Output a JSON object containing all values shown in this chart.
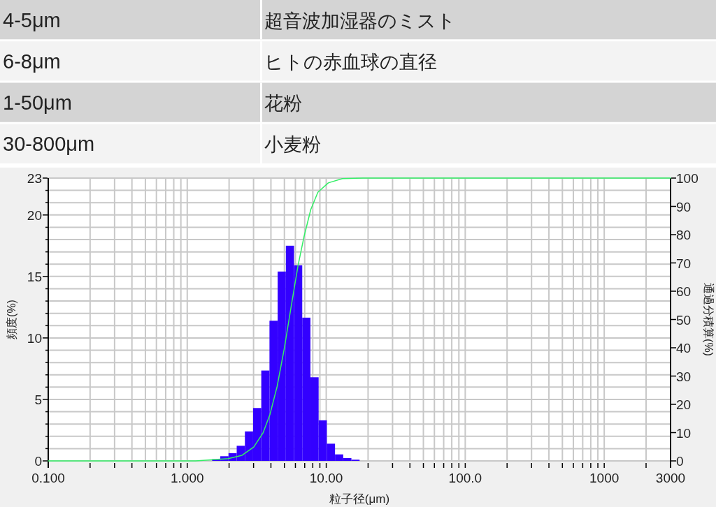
{
  "chart_data": [
    {
      "type": "other",
      "annotations": [
        "4-5μm",
        "超音波加湿器のミスト",
        "6-8μm",
        "ヒトの赤血球の直径",
        "1-50μm",
        "花粉",
        "30-800μm",
        "小麦粉"
      ]
    },
    {
      "type": "histogram",
      "xlabel": "粒子径(μm)",
      "ylabel": "頻度(%)",
      "y2label": "通過分積算(%)",
      "log": "x",
      "grid": true,
      "color": "#3300ff",
      "bins": [
        1.51,
        1.729,
        1.981,
        2.269,
        2.599,
        2.976,
        3.409,
        3.905,
        4.472,
        5.122,
        5.867,
        6.72,
        7.697,
        8.816,
        10.097,
        11.565,
        13.246,
        15.172,
        17.377
      ],
      "values": [
        0.15,
        0.38,
        0.63,
        1.23,
        2.4,
        4.3,
        7.35,
        11.4,
        15.4,
        17.5,
        15.9,
        11.65,
        6.8,
        3.3,
        1.4,
        0.53,
        0.23,
        0.1
      ],
      "series": [
        {
          "type": "line",
          "axis": "y2",
          "color": "#33ee66",
          "x": [
            0.1,
            1.148,
            1.97,
            2.48,
            3.01,
            3.51,
            3.94,
            4.43,
            4.98,
            5.58,
            6.27,
            6.9,
            7.74,
            8.71,
            10.35,
            13.06,
            18.4,
            3000
          ],
          "values": [
            0,
            0,
            0.8,
            2.0,
            4.9,
            9.9,
            16.5,
            26.3,
            39.5,
            54.3,
            69.1,
            79,
            88.9,
            95,
            98.3,
            99.8,
            100,
            100
          ]
        }
      ],
      "xlim": [
        0.1,
        3000
      ],
      "xticks": [
        {
          "value": 0.1,
          "label": "0.100"
        },
        {
          "value": 0.2,
          "label": null
        },
        {
          "value": 0.3,
          "label": null
        },
        {
          "value": 0.4,
          "label": null
        },
        {
          "value": 0.5,
          "label": null
        },
        {
          "value": 0.6,
          "label": null
        },
        {
          "value": 0.7,
          "label": null
        },
        {
          "value": 0.8,
          "label": null
        },
        {
          "value": 0.9,
          "label": null
        },
        {
          "value": 1,
          "label": "1.000"
        },
        {
          "value": 2,
          "label": null
        },
        {
          "value": 3,
          "label": null
        },
        {
          "value": 4,
          "label": null
        },
        {
          "value": 5,
          "label": null
        },
        {
          "value": 6,
          "label": null
        },
        {
          "value": 7,
          "label": null
        },
        {
          "value": 8,
          "label": null
        },
        {
          "value": 9,
          "label": null
        },
        {
          "value": 10,
          "label": "10.00"
        },
        {
          "value": 20,
          "label": null
        },
        {
          "value": 30,
          "label": null
        },
        {
          "value": 40,
          "label": null
        },
        {
          "value": 50,
          "label": null
        },
        {
          "value": 60,
          "label": null
        },
        {
          "value": 70,
          "label": null
        },
        {
          "value": 80,
          "label": null
        },
        {
          "value": 90,
          "label": null
        },
        {
          "value": 100,
          "label": "100.0"
        },
        {
          "value": 200,
          "label": null
        },
        {
          "value": 300,
          "label": null
        },
        {
          "value": 400,
          "label": null
        },
        {
          "value": 500,
          "label": null
        },
        {
          "value": 600,
          "label": null
        },
        {
          "value": 700,
          "label": null
        },
        {
          "value": 800,
          "label": null
        },
        {
          "value": 900,
          "label": null
        },
        1000,
        {
          "value": 2000,
          "label": null
        },
        3000
      ],
      "ylim": [
        0,
        23
      ],
      "yticks": [
        0,
        {
          "value": 1,
          "label": null
        },
        {
          "value": 2,
          "label": null
        },
        {
          "value": 3,
          "label": null
        },
        {
          "value": 4,
          "label": null
        },
        5,
        {
          "value": 6,
          "label": null
        },
        {
          "value": 7,
          "label": null
        },
        {
          "value": 8,
          "label": null
        },
        {
          "value": 9,
          "label": null
        },
        10,
        {
          "value": 11,
          "label": null
        },
        {
          "value": 12,
          "label": null
        },
        {
          "value": 13,
          "label": null
        },
        {
          "value": 14,
          "label": null
        },
        15,
        {
          "value": 16,
          "label": null
        },
        {
          "value": 17,
          "label": null
        },
        {
          "value": 18,
          "label": null
        },
        {
          "value": 19,
          "label": null
        },
        20,
        {
          "value": 21,
          "label": null
        },
        {
          "value": 22,
          "label": null
        },
        23
      ],
      "y2lim": [
        0,
        100
      ],
      "y2ticks": [
        0,
        10,
        20,
        30,
        40,
        50,
        60,
        70,
        80,
        90,
        100
      ]
    }
  ]
}
